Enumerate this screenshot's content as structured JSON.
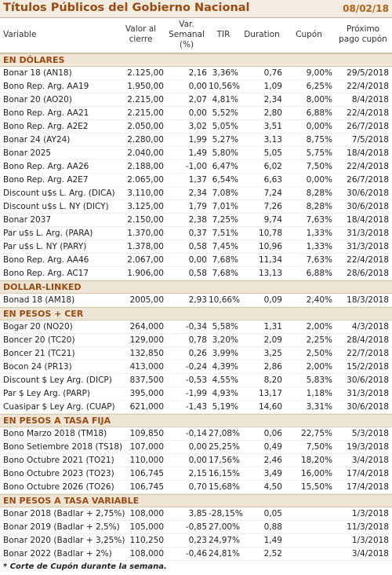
{
  "header": {
    "title": "Títulos Públicos del Gobierno Nacional",
    "date": "08/02/18"
  },
  "columns": [
    "Variable",
    "Valor al cierre",
    "Var. Semanal (%)",
    "TIR",
    "Duration",
    "Cupón",
    "Próximo pago cupón"
  ],
  "sections": [
    {
      "title": "EN DÓLARES",
      "rows": [
        [
          "Bonar 18 (AN18)",
          "2.125,00",
          "2,16",
          "3,36%",
          "0,76",
          "9,00%",
          "29/5/2018"
        ],
        [
          "Bono Rep. Arg. AA19",
          "1.950,00",
          "0,00",
          "10,56%",
          "1,09",
          "6,25%",
          "22/4/2018"
        ],
        [
          "Bonar 20 (AO20)",
          "2.215,00",
          "2,07",
          "4,81%",
          "2,34",
          "8,00%",
          "8/4/2018"
        ],
        [
          "Bono Rep. Arg. AA21",
          "2.215,00",
          "0,00",
          "5,52%",
          "2,80",
          "6,88%",
          "22/4/2018"
        ],
        [
          "Bono Rep. Arg. A2E2",
          "2.050,00",
          "3,02",
          "5,05%",
          "3,51",
          "0,00%",
          "26/7/2018"
        ],
        [
          "Bonar 24 (AY24)",
          "2.280,00",
          "1,99",
          "5,27%",
          "3,13",
          "8,75%",
          "7/5/2018"
        ],
        [
          "Bonar 2025",
          "2.040,00",
          "1,49",
          "5,80%",
          "5,05",
          "5,75%",
          "18/4/2018"
        ],
        [
          "Bono Rep. Arg. AA26",
          "2.188,00",
          "-1,00",
          "6,47%",
          "6,02",
          "7,50%",
          "22/4/2018"
        ],
        [
          "Bono Rep. Arg. A2E7",
          "2.065,00",
          "1,37",
          "6,54%",
          "6,63",
          "0,00%",
          "26/7/2018"
        ],
        [
          "Discount u$s L. Arg. (DICA)",
          "3.110,00",
          "2,34",
          "7,08%",
          "7,24",
          "8,28%",
          "30/6/2018"
        ],
        [
          "Discount u$s L. NY (DICY)",
          "3.125,00",
          "1,79",
          "7,01%",
          "7,26",
          "8,28%",
          "30/6/2018"
        ],
        [
          "Bonar 2037",
          "2.150,00",
          "2,38",
          "7,25%",
          "9,74",
          "7,63%",
          "18/4/2018"
        ],
        [
          "Par u$s L. Arg. (PARA)",
          "1.370,00",
          "0,37",
          "7,51%",
          "10,78",
          "1,33%",
          "31/3/2018"
        ],
        [
          "Par u$s L. NY (PARY)",
          "1.378,00",
          "0,58",
          "7,45%",
          "10,96",
          "1,33%",
          "31/3/2018"
        ],
        [
          "Bono Rep. Arg. AA46",
          "2.067,00",
          "0,00",
          "7,68%",
          "11,34",
          "7,63%",
          "22/4/2018"
        ],
        [
          "Bono Rep. Arg. AC17",
          "1.906,00",
          "0,58",
          "7,68%",
          "13,13",
          "6,88%",
          "28/6/2018"
        ]
      ]
    },
    {
      "title": "DOLLAR-LINKED",
      "rows": [
        [
          "Bonad 18 (AM18)",
          "2005,00",
          "2,93",
          "10,66%",
          "0,09",
          "2,40%",
          "18/3/2018"
        ]
      ]
    },
    {
      "title": "EN PESOS + CER",
      "rows": [
        [
          "Bogar 20 (NO20)",
          "264,000",
          "-0,34",
          "5,58%",
          "1,31",
          "2,00%",
          "4/3/2018"
        ],
        [
          "Boncer 20 (TC20)",
          "129,000",
          "0,78",
          "3,20%",
          "2,09",
          "2,25%",
          "28/4/2018"
        ],
        [
          "Boncer 21 (TC21)",
          "132,850",
          "0,26",
          "3,99%",
          "3,25",
          "2,50%",
          "22/7/2018"
        ],
        [
          "Bocon 24 (PR13)",
          "413,000",
          "-0,24",
          "4,39%",
          "2,86",
          "2,00%",
          "15/2/2018"
        ],
        [
          "Discount $ Ley Arg. (DICP)",
          "837,500",
          "-0,53",
          "4,55%",
          "8,20",
          "5,83%",
          "30/6/2018"
        ],
        [
          "Par $ Ley Arg. (PARP)",
          "395,000",
          "-1,99",
          "4,93%",
          "13,17",
          "1,18%",
          "31/3/2018"
        ],
        [
          "Cuasipar $ Ley Arg. (CUAP)",
          "621,000",
          "-1,43",
          "5,19%",
          "14,60",
          "3,31%",
          "30/6/2018"
        ]
      ]
    },
    {
      "title": "EN PESOS A TASA FIJA",
      "rows": [
        [
          "Bono Marzo 2018 (TM18)",
          "109,850",
          "-0,14",
          "27,08%",
          "0,06",
          "22,75%",
          "5/3/2018"
        ],
        [
          "Bono Setiembre 2018 (TS18)",
          "107,000",
          "0,00",
          "25,25%",
          "0,49",
          "7,50%",
          "19/3/2018"
        ],
        [
          "Bono Octubre 2021 (TO21)",
          "110,000",
          "0,00",
          "17,56%",
          "2,46",
          "18,20%",
          "3/4/2018"
        ],
        [
          "Bono Octubre 2023 (TO23)",
          "106,745",
          "2,15",
          "16,15%",
          "3,49",
          "16,00%",
          "17/4/2018"
        ],
        [
          "Bono Octubre 2026 (TO26)",
          "106,745",
          "0,70",
          "15,68%",
          "4,50",
          "15,50%",
          "17/4/2018"
        ]
      ]
    },
    {
      "title": "EN PESOS A TASA VARIABLE",
      "rows": [
        [
          "Bonar 2018 (Badlar + 2,75%)",
          "108,000",
          "3,85",
          "-28,15%",
          "0,05",
          null,
          "1/3/2018"
        ],
        [
          "Bonar 2019 (Badlar + 2,5%)",
          "105,000",
          "-0,85",
          "27,00%",
          "0,88",
          null,
          "11/3/2018"
        ],
        [
          "Bonar 2020 (Badlar + 3,25%)",
          "110,250",
          "0,23",
          "24,97%",
          "1,49",
          null,
          "1/3/2018"
        ],
        [
          "Bonar 2022 (Badlar + 2%)",
          "108,000",
          "-0,46",
          "24,81%",
          "2,52",
          null,
          "3/4/2018"
        ]
      ]
    }
  ],
  "footnote": "* Corte de Cupón durante la semana."
}
